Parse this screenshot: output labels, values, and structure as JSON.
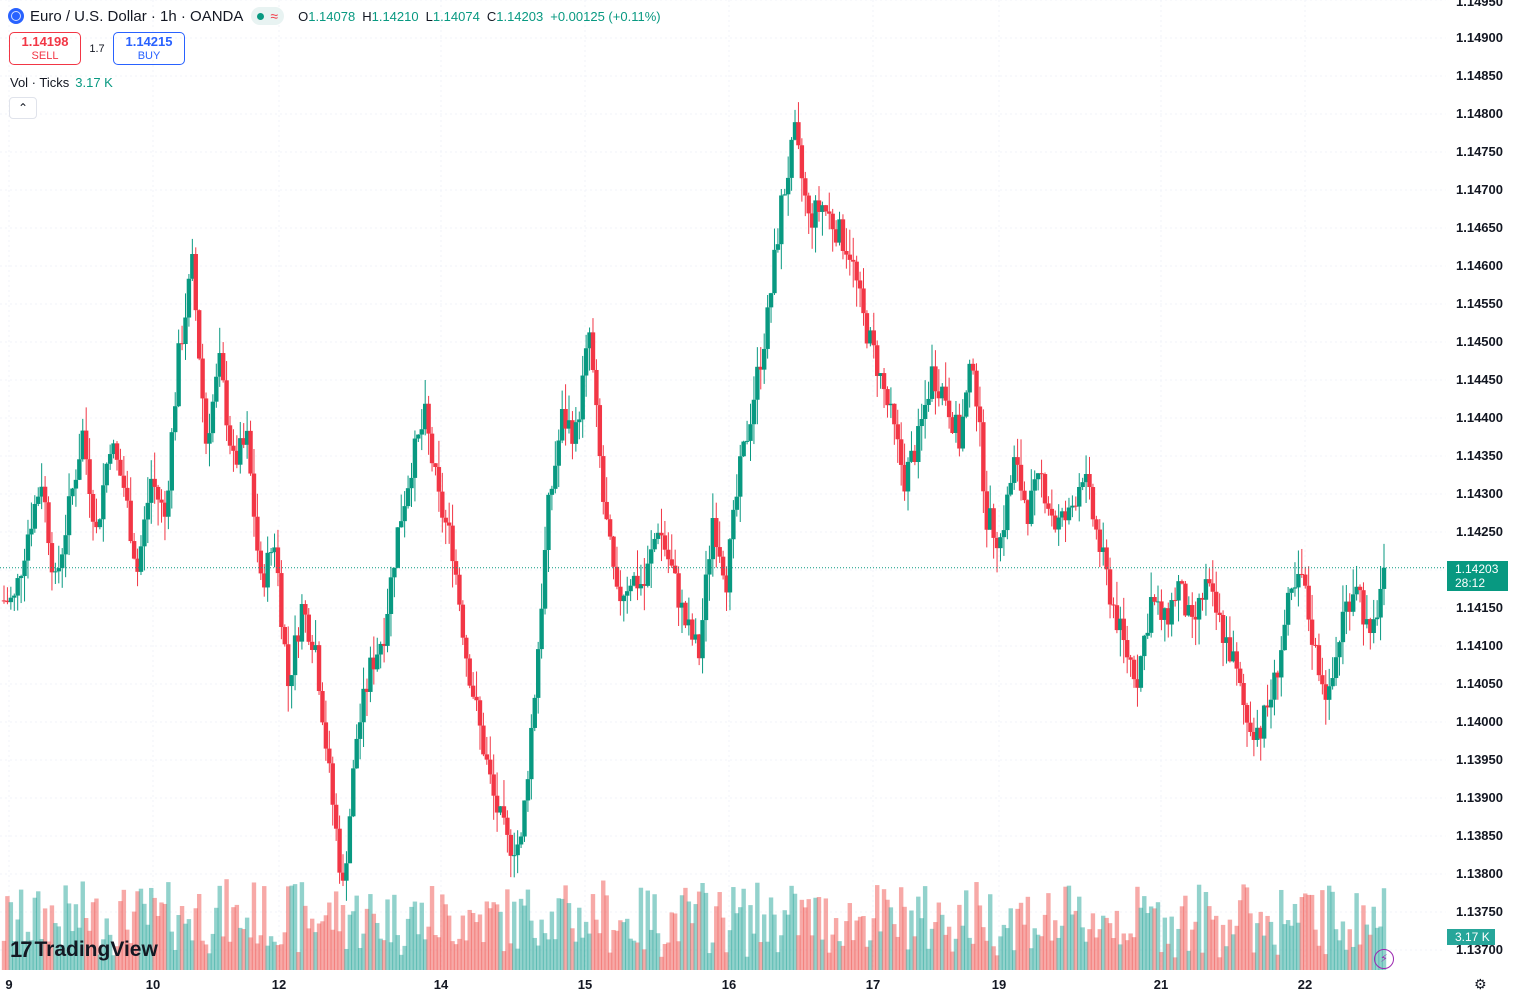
{
  "header": {
    "symbol_label": "Euro / U.S. Dollar · 1h · OANDA",
    "status_wave": "≈",
    "ohlc": {
      "o_label": "O",
      "o": "1.14078",
      "h_label": "H",
      "h": "1.14210",
      "l_label": "L",
      "l": "1.14074",
      "c_label": "C",
      "c": "1.14203",
      "change": "+0.00125 (+0.11%)"
    }
  },
  "trade": {
    "sell_price": "1.14198",
    "sell_label": "SELL",
    "spread": "1.7",
    "buy_price": "1.14215",
    "buy_label": "BUY"
  },
  "volume_legend": {
    "label": "Vol · Ticks",
    "value": "3.17 K"
  },
  "price_axis": {
    "labels": [
      "1.14950",
      "1.14900",
      "1.14850",
      "1.14800",
      "1.14750",
      "1.14700",
      "1.14650",
      "1.14600",
      "1.14550",
      "1.14500",
      "1.14450",
      "1.14400",
      "1.14350",
      "1.14300",
      "1.14250",
      "1.14150",
      "1.14100",
      "1.14050",
      "1.14000",
      "1.13950",
      "1.13900",
      "1.13850",
      "1.13800",
      "1.13750",
      "1.13700"
    ],
    "current_price": "1.14203",
    "countdown": "28:12",
    "volume_tag": "3.17 K"
  },
  "time_axis": {
    "labels": [
      "9",
      "10",
      "12",
      "14",
      "15",
      "16",
      "17",
      "19",
      "21",
      "22"
    ]
  },
  "brand": {
    "name": "TradingView",
    "mark": "17"
  },
  "colors": {
    "up": "#089981",
    "down": "#f23645",
    "vol_up": "#26a69a",
    "vol_down": "#ef5350",
    "accent": "#2962ff"
  },
  "chart_data": {
    "type": "candlestick",
    "title": "Euro / U.S. Dollar · 1h · OANDA",
    "ylim": [
      1.1369,
      1.1496
    ],
    "x_tick_labels": [
      "9",
      "10",
      "12",
      "14",
      "15",
      "16",
      "17",
      "19",
      "21",
      "22"
    ],
    "close_path": [
      1.1416,
      1.1425,
      1.1432,
      1.1418,
      1.1428,
      1.1438,
      1.1425,
      1.1437,
      1.1431,
      1.142,
      1.1432,
      1.1427,
      1.1448,
      1.146,
      1.1437,
      1.1447,
      1.1434,
      1.1437,
      1.1418,
      1.1424,
      1.1405,
      1.1415,
      1.141,
      1.1393,
      1.1378,
      1.1398,
      1.1407,
      1.1412,
      1.1425,
      1.1434,
      1.144,
      1.1429,
      1.1423,
      1.1409,
      1.1399,
      1.139,
      1.1384,
      1.1384,
      1.1404,
      1.1428,
      1.144,
      1.1438,
      1.1451,
      1.1429,
      1.1416,
      1.1419,
      1.1418,
      1.1426,
      1.142,
      1.1413,
      1.1409,
      1.1427,
      1.1419,
      1.1433,
      1.1443,
      1.1453,
      1.1468,
      1.1477,
      1.1466,
      1.1468,
      1.1465,
      1.1462,
      1.1453,
      1.1447,
      1.144,
      1.1432,
      1.1437,
      1.1446,
      1.1443,
      1.1437,
      1.1448,
      1.1427,
      1.1424,
      1.1434,
      1.1428,
      1.1432,
      1.1426,
      1.1427,
      1.1433,
      1.1425,
      1.1417,
      1.141,
      1.1406,
      1.1416,
      1.1413,
      1.1418,
      1.1412,
      1.1418,
      1.1413,
      1.1408,
      1.14,
      1.1399,
      1.1405,
      1.1415,
      1.1419,
      1.1409,
      1.1403,
      1.1414,
      1.1419,
      1.141,
      1.142
    ],
    "closing_value": 1.14203,
    "volume_last": "3.17 K"
  }
}
